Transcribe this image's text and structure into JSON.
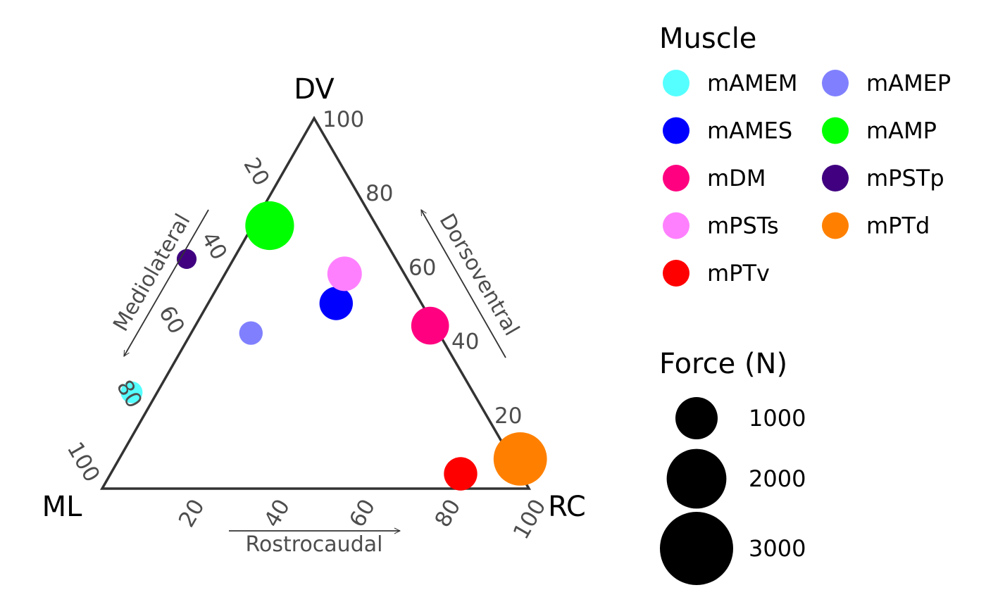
{
  "chart_data": {
    "type": "scatter",
    "subtype": "ternary",
    "grid": false,
    "vertices": {
      "top": "DV",
      "left": "ML",
      "right": "RC"
    },
    "axis_titles": {
      "left": "Mediolateral",
      "right": "Dorsoventral",
      "bottom": "Rostrocaudal"
    },
    "bottom_ticks": [
      "20",
      "40",
      "60",
      "80",
      "100"
    ],
    "left_ticks": [
      "20",
      "40",
      "60",
      "80",
      "100"
    ],
    "right_ticks": [
      "20",
      "40",
      "60",
      "80",
      "100"
    ],
    "points": [
      {
        "name": "mAMEM",
        "color": "#55FFFF",
        "ml": 80,
        "dv": 26,
        "rc": -6,
        "force": 600
      },
      {
        "name": "mAMEP",
        "color": "#8080FF",
        "ml": 44,
        "dv": 42,
        "rc": 14,
        "force": 700
      },
      {
        "name": "mAMES",
        "color": "#0000FF",
        "ml": 20,
        "dv": 50,
        "rc": 30,
        "force": 1400
      },
      {
        "name": "mAMP",
        "color": "#00FF00",
        "ml": 25,
        "dv": 71,
        "rc": 4,
        "force": 3000
      },
      {
        "name": "mDM",
        "color": "#FF0080",
        "ml": 1,
        "dv": 44,
        "rc": 55,
        "force": 1800
      },
      {
        "name": "mPSTp",
        "color": "#400080",
        "ml": 49,
        "dv": 62,
        "rc": -11,
        "force": 500
      },
      {
        "name": "mPSTs",
        "color": "#FF80FF",
        "ml": 14,
        "dv": 58,
        "rc": 28,
        "force": 1500
      },
      {
        "name": "mPTd",
        "color": "#FF8000",
        "ml": -2,
        "dv": 8,
        "rc": 94,
        "force": 3600
      },
      {
        "name": "mPTv",
        "color": "#FF0000",
        "ml": 14,
        "dv": 4,
        "rc": 82,
        "force": 1400
      }
    ],
    "legend": {
      "placement": "right",
      "color_title": "Muscle",
      "color_entries": [
        {
          "name": "mAMEM",
          "color": "#55FFFF"
        },
        {
          "name": "mAMEP",
          "color": "#8080FF"
        },
        {
          "name": "mAMES",
          "color": "#0000FF"
        },
        {
          "name": "mAMP",
          "color": "#00FF00"
        },
        {
          "name": "mDM",
          "color": "#FF0080"
        },
        {
          "name": "mPSTp",
          "color": "#400080"
        },
        {
          "name": "mPSTs",
          "color": "#FF80FF"
        },
        {
          "name": "mPTd",
          "color": "#FF8000"
        },
        {
          "name": "mPTv",
          "color": "#FF0000"
        }
      ],
      "size_title": "Force (N)",
      "size_entries": [
        {
          "label": "1000",
          "value": 1000
        },
        {
          "label": "2000",
          "value": 2000
        },
        {
          "label": "3000",
          "value": 3000
        }
      ]
    }
  }
}
